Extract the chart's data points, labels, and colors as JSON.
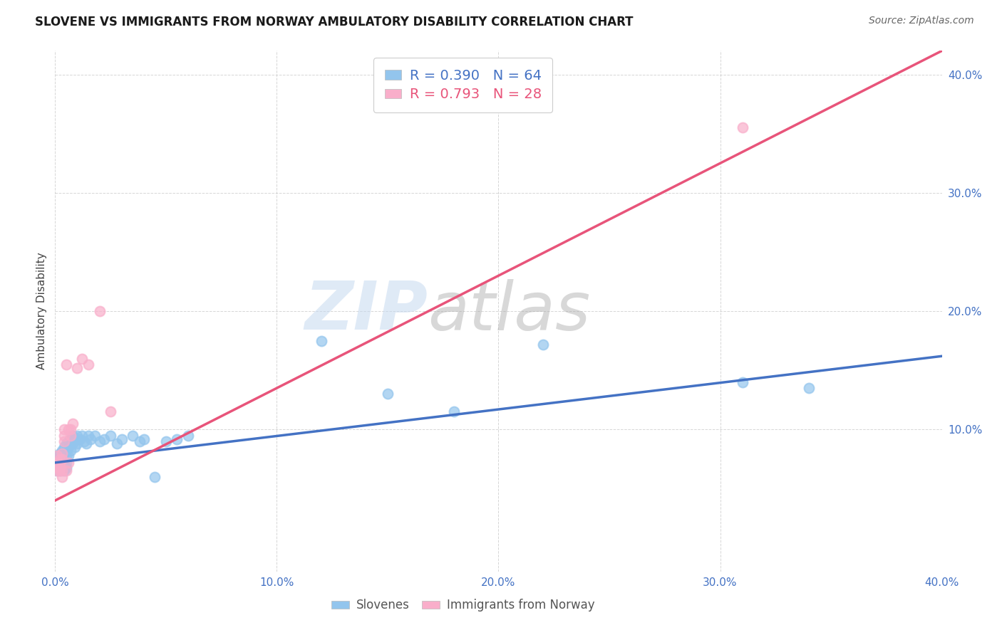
{
  "title": "SLOVENE VS IMMIGRANTS FROM NORWAY AMBULATORY DISABILITY CORRELATION CHART",
  "source": "Source: ZipAtlas.com",
  "ylabel": "Ambulatory Disability",
  "xlim": [
    0.0,
    0.4
  ],
  "ylim": [
    -0.02,
    0.42
  ],
  "xtick_labels": [
    "0.0%",
    "",
    "10.0%",
    "",
    "20.0%",
    "",
    "30.0%",
    "",
    "40.0%"
  ],
  "xtick_vals": [
    0.0,
    0.05,
    0.1,
    0.15,
    0.2,
    0.25,
    0.3,
    0.35,
    0.4
  ],
  "ytick_labels": [
    "10.0%",
    "20.0%",
    "30.0%",
    "40.0%"
  ],
  "ytick_vals": [
    0.1,
    0.2,
    0.3,
    0.4
  ],
  "slovene_color": "#93C5ED",
  "norway_color": "#F9AECA",
  "slovene_line_color": "#4472C4",
  "norway_line_color": "#E8547A",
  "watermark_zip": "ZIP",
  "watermark_atlas": "atlas",
  "legend_label1": "Slovenes",
  "legend_label2": "Immigrants from Norway",
  "background_color": "#FFFFFF",
  "grid_color": "#CCCCCC",
  "slovene_x": [
    0.001,
    0.001,
    0.001,
    0.001,
    0.001,
    0.002,
    0.002,
    0.002,
    0.002,
    0.002,
    0.003,
    0.003,
    0.003,
    0.003,
    0.003,
    0.003,
    0.004,
    0.004,
    0.004,
    0.004,
    0.004,
    0.004,
    0.005,
    0.005,
    0.005,
    0.005,
    0.005,
    0.006,
    0.006,
    0.006,
    0.007,
    0.007,
    0.007,
    0.008,
    0.008,
    0.009,
    0.009,
    0.01,
    0.01,
    0.011,
    0.012,
    0.013,
    0.014,
    0.015,
    0.016,
    0.018,
    0.02,
    0.022,
    0.025,
    0.028,
    0.03,
    0.035,
    0.038,
    0.04,
    0.045,
    0.05,
    0.055,
    0.06,
    0.12,
    0.15,
    0.18,
    0.22,
    0.31,
    0.34
  ],
  "slovene_y": [
    0.075,
    0.078,
    0.072,
    0.068,
    0.065,
    0.08,
    0.075,
    0.07,
    0.068,
    0.065,
    0.082,
    0.078,
    0.075,
    0.07,
    0.072,
    0.068,
    0.085,
    0.08,
    0.075,
    0.072,
    0.068,
    0.065,
    0.088,
    0.082,
    0.078,
    0.072,
    0.068,
    0.09,
    0.085,
    0.078,
    0.092,
    0.088,
    0.082,
    0.095,
    0.088,
    0.092,
    0.085,
    0.095,
    0.088,
    0.092,
    0.095,
    0.09,
    0.088,
    0.095,
    0.092,
    0.095,
    0.09,
    0.092,
    0.095,
    0.088,
    0.092,
    0.095,
    0.09,
    0.092,
    0.06,
    0.09,
    0.092,
    0.095,
    0.175,
    0.13,
    0.115,
    0.172,
    0.14,
    0.135
  ],
  "norway_x": [
    0.001,
    0.001,
    0.001,
    0.001,
    0.002,
    0.002,
    0.002,
    0.002,
    0.003,
    0.003,
    0.003,
    0.003,
    0.004,
    0.004,
    0.004,
    0.005,
    0.005,
    0.006,
    0.006,
    0.007,
    0.007,
    0.008,
    0.01,
    0.012,
    0.015,
    0.02,
    0.025,
    0.31
  ],
  "norway_y": [
    0.065,
    0.068,
    0.072,
    0.078,
    0.07,
    0.075,
    0.068,
    0.065,
    0.08,
    0.075,
    0.065,
    0.06,
    0.09,
    0.095,
    0.1,
    0.155,
    0.065,
    0.072,
    0.1,
    0.095,
    0.1,
    0.105,
    0.152,
    0.16,
    0.155,
    0.2,
    0.115,
    0.355
  ],
  "slovene_regline_x": [
    0.0,
    0.4
  ],
  "slovene_regline_y": [
    0.072,
    0.162
  ],
  "norway_regline_x": [
    0.0,
    0.4
  ],
  "norway_regline_y": [
    0.04,
    0.42
  ]
}
